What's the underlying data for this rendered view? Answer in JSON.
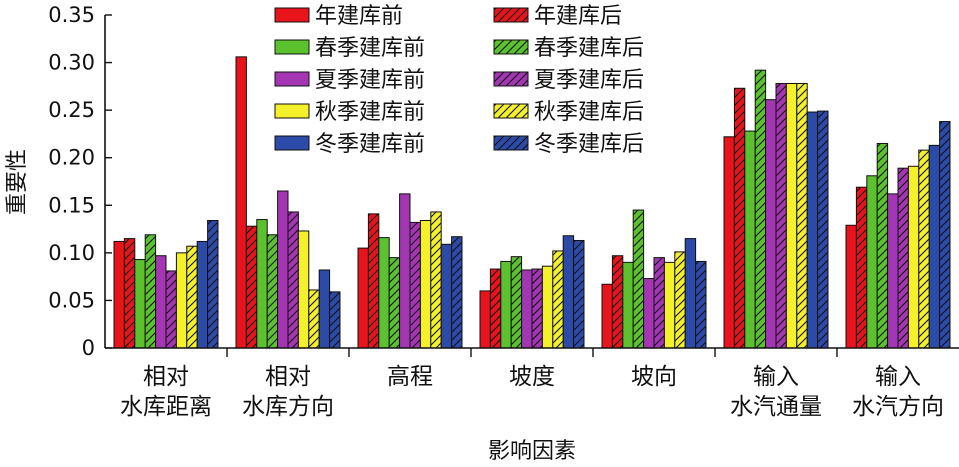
{
  "chart_data": {
    "type": "bar",
    "title": "",
    "xlabel": "影响因素",
    "ylabel": "重要性",
    "ylim": [
      0,
      0.35
    ],
    "yticks": [
      "0",
      "0.05",
      "0.10",
      "0.15",
      "0.20",
      "0.25",
      "0.30",
      "0.35"
    ],
    "categories": [
      [
        "相对",
        "水库距离"
      ],
      [
        "相对",
        "水库方向"
      ],
      [
        "高程"
      ],
      [
        "坡度"
      ],
      [
        "坡向"
      ],
      [
        "输入",
        "水汽通量"
      ],
      [
        "输入",
        "水汽方向"
      ]
    ],
    "legend_position": "top",
    "series": [
      {
        "name": "年建库前",
        "color": "#e8141c",
        "hatched": false,
        "values": [
          0.112,
          0.306,
          0.105,
          0.06,
          0.067,
          0.222,
          0.129
        ]
      },
      {
        "name": "年建库后",
        "color": "#e8141c",
        "hatched": true,
        "values": [
          0.115,
          0.128,
          0.141,
          0.083,
          0.097,
          0.273,
          0.169
        ]
      },
      {
        "name": "春季建库前",
        "color": "#5bc12e",
        "hatched": false,
        "values": [
          0.093,
          0.135,
          0.116,
          0.091,
          0.09,
          0.228,
          0.181
        ]
      },
      {
        "name": "春季建库后",
        "color": "#5bc12e",
        "hatched": true,
        "values": [
          0.119,
          0.119,
          0.095,
          0.096,
          0.145,
          0.292,
          0.215
        ]
      },
      {
        "name": "夏季建库前",
        "color": "#a436b4",
        "hatched": false,
        "values": [
          0.097,
          0.165,
          0.162,
          0.082,
          0.073,
          0.261,
          0.162
        ]
      },
      {
        "name": "夏季建库后",
        "color": "#a436b4",
        "hatched": true,
        "values": [
          0.081,
          0.143,
          0.132,
          0.083,
          0.095,
          0.278,
          0.189
        ]
      },
      {
        "name": "秋季建库前",
        "color": "#f4f02a",
        "hatched": false,
        "values": [
          0.1,
          0.123,
          0.134,
          0.086,
          0.09,
          0.278,
          0.191
        ]
      },
      {
        "name": "秋季建库后",
        "color": "#f4f02a",
        "hatched": true,
        "values": [
          0.107,
          0.061,
          0.143,
          0.102,
          0.101,
          0.278,
          0.208
        ]
      },
      {
        "name": "冬季建库前",
        "color": "#2c4aa8",
        "hatched": false,
        "values": [
          0.112,
          0.082,
          0.109,
          0.118,
          0.115,
          0.248,
          0.213
        ]
      },
      {
        "name": "冬季建库后",
        "color": "#2c4aa8",
        "hatched": true,
        "values": [
          0.134,
          0.059,
          0.117,
          0.113,
          0.091,
          0.249,
          0.238
        ]
      }
    ]
  }
}
